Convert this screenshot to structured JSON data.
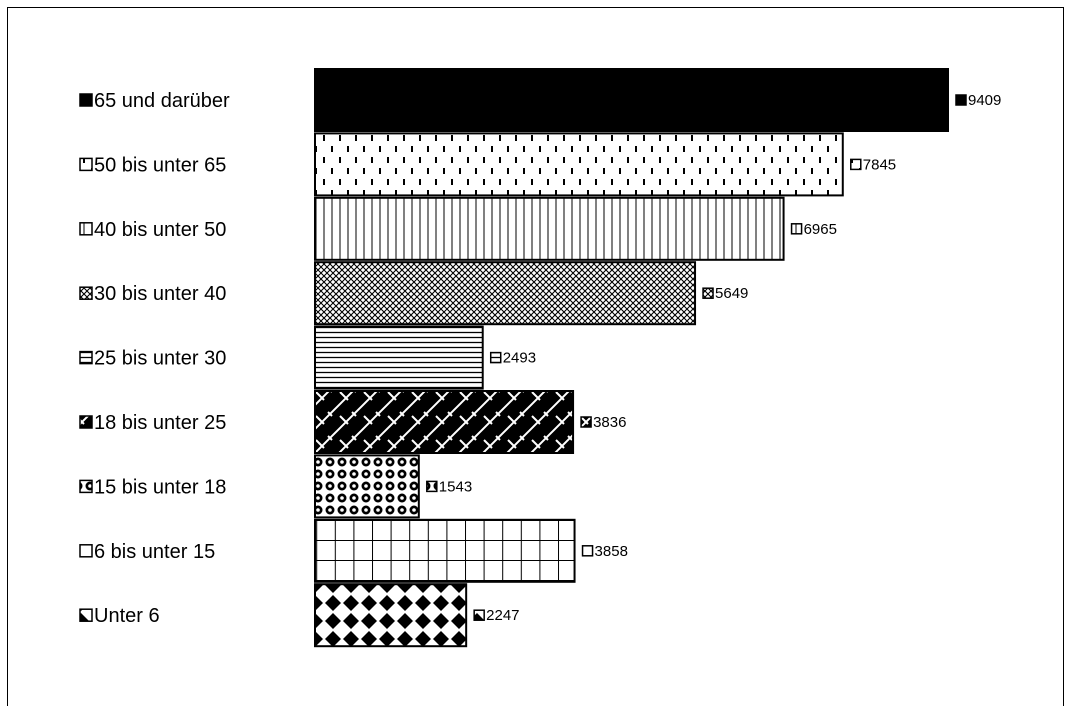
{
  "chart_data": {
    "type": "bar",
    "orientation": "horizontal",
    "title": "",
    "xlabel": "",
    "ylabel": "",
    "grid": false,
    "legend": "left",
    "xlim": [
      0,
      10000
    ],
    "categories": [
      "65 und darüber",
      "50 bis unter 65",
      "40 bis unter 50",
      "30 bis unter 40",
      "25 bis unter 30",
      "18 bis unter 25",
      "15 bis unter 18",
      "6 bis unter 15",
      "Unter 6"
    ],
    "values": [
      9409,
      7845,
      6965,
      5649,
      2493,
      3836,
      1543,
      3858,
      2247
    ],
    "patterns": [
      "solid",
      "dashes",
      "vlines",
      "crosshatch",
      "hlines",
      "diag-brick",
      "dots",
      "grid",
      "diamonds"
    ],
    "colors": {
      "fill": "#000000",
      "background": "#ffffff"
    }
  }
}
